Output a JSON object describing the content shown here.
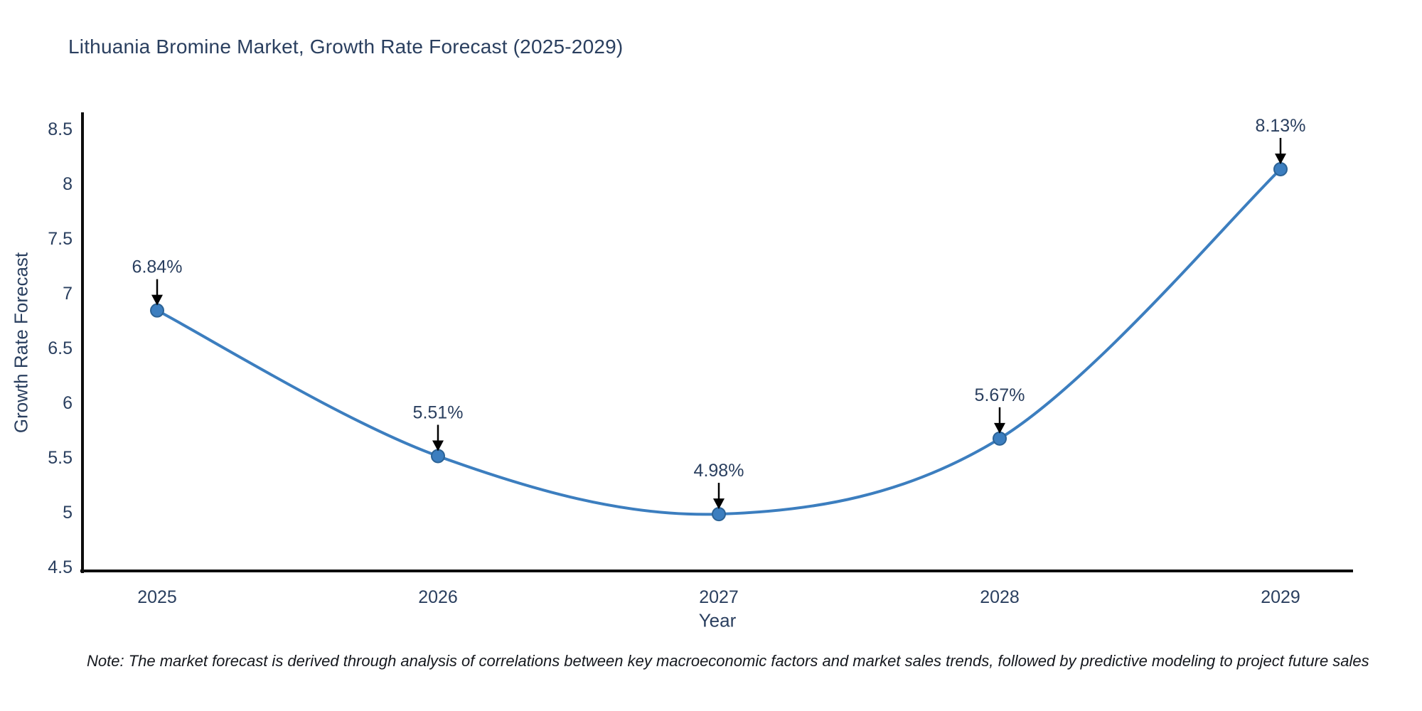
{
  "page": {
    "title": "Lithuania Bromine Market, Growth Rate Forecast (2025-2029)",
    "note": "Note: The market forecast is derived through analysis of correlations between key macroeconomic factors and market sales trends, followed by predictive modeling to project future sales"
  },
  "chart_data": {
    "type": "line",
    "title": "Lithuania Bromine Market, Growth Rate Forecast (2025-2029)",
    "x": [
      "2025",
      "2026",
      "2027",
      "2028",
      "2029"
    ],
    "y": [
      6.84,
      5.51,
      4.98,
      5.67,
      8.13
    ],
    "point_labels": [
      "6.84%",
      "5.51%",
      "4.98%",
      "5.67%",
      "8.13%"
    ],
    "xlabel": "Year",
    "ylabel": "Growth Rate Forecast",
    "ylim": [
      4.5,
      8.5
    ],
    "ytick_labels": [
      "4.5",
      "5",
      "5.5",
      "6",
      "6.5",
      "7",
      "7.5",
      "8",
      "8.5"
    ],
    "ytick_values": [
      4.5,
      5.0,
      5.5,
      6.0,
      6.5,
      7.0,
      7.5,
      8.0,
      8.5
    ],
    "line_shape": "spline",
    "grid": false,
    "legend": "none",
    "annotation_style": "label-above-with-down-arrow",
    "colors": {
      "line": "#3c7ebf",
      "marker_fill": "#3c7ebf",
      "marker_edge": "#2c6396",
      "axis": "#0d0d0d",
      "text": "#2a3f5f",
      "arrow": "#000000",
      "note_text": "#15181e",
      "background": "#ffffff"
    }
  }
}
